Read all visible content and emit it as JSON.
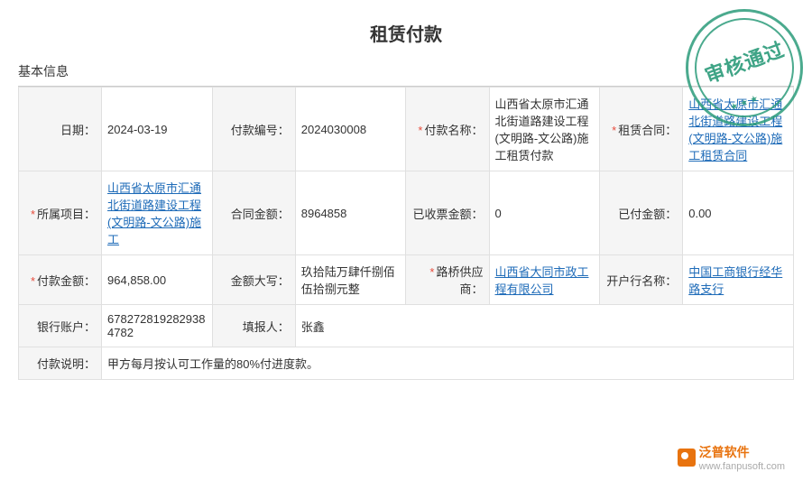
{
  "title": "租赁付款",
  "section": "基本信息",
  "colors": {
    "link": "#1e6bb8",
    "required": "#e74c3c",
    "border": "#e0e0e0",
    "labelBg": "#f5f5f5",
    "stamp": "#2b9b7a"
  },
  "stamp": {
    "text": "审核通过",
    "stars": "★ ★ ★"
  },
  "rows": {
    "r1": {
      "c1l": "日期：",
      "c1v": "2024-03-19",
      "c2l": "付款编号：",
      "c2v": "2024030008",
      "c3l": "付款名称：",
      "c3req": true,
      "c3v": "山西省太原市汇通北街道路建设工程(文明路-文公路)施工租赁付款",
      "c4l": "租赁合同：",
      "c4req": true,
      "c4v": "山西省太原市汇通北街道路建设工程(文明路-文公路)施工租赁合同",
      "c4link": true
    },
    "r2": {
      "c1l": "所属项目：",
      "c1req": true,
      "c1v": "山西省太原市汇通北街道路建设工程(文明路-文公路)施工",
      "c1link": true,
      "c2l": "合同金额：",
      "c2v": "8964858",
      "c3l": "已收票金额：",
      "c3v": "0",
      "c4l": "已付金额：",
      "c4v": "0.00"
    },
    "r3": {
      "c1l": "付款金额：",
      "c1req": true,
      "c1v": "964,858.00",
      "c2l": "金额大写：",
      "c2v": "玖拾陆万肆仟捌佰伍拾捌元整",
      "c3l": "路桥供应商：",
      "c3req": true,
      "c3v": "山西省大同市政工程有限公司",
      "c3link": true,
      "c4l": "开户行名称：",
      "c4v": "中国工商银行经华路支行",
      "c4link": true
    },
    "r4": {
      "c1l": "银行账户：",
      "c1v": "678272819282938 4782",
      "c2l": "填报人：",
      "c2v": "张鑫"
    },
    "r5": {
      "c1l": "付款说明：",
      "c1v": "甲方每月按认可工作量的80%付进度款。"
    }
  },
  "logo": {
    "brand": "泛普软件",
    "url": "www.fanpusoft.com"
  }
}
